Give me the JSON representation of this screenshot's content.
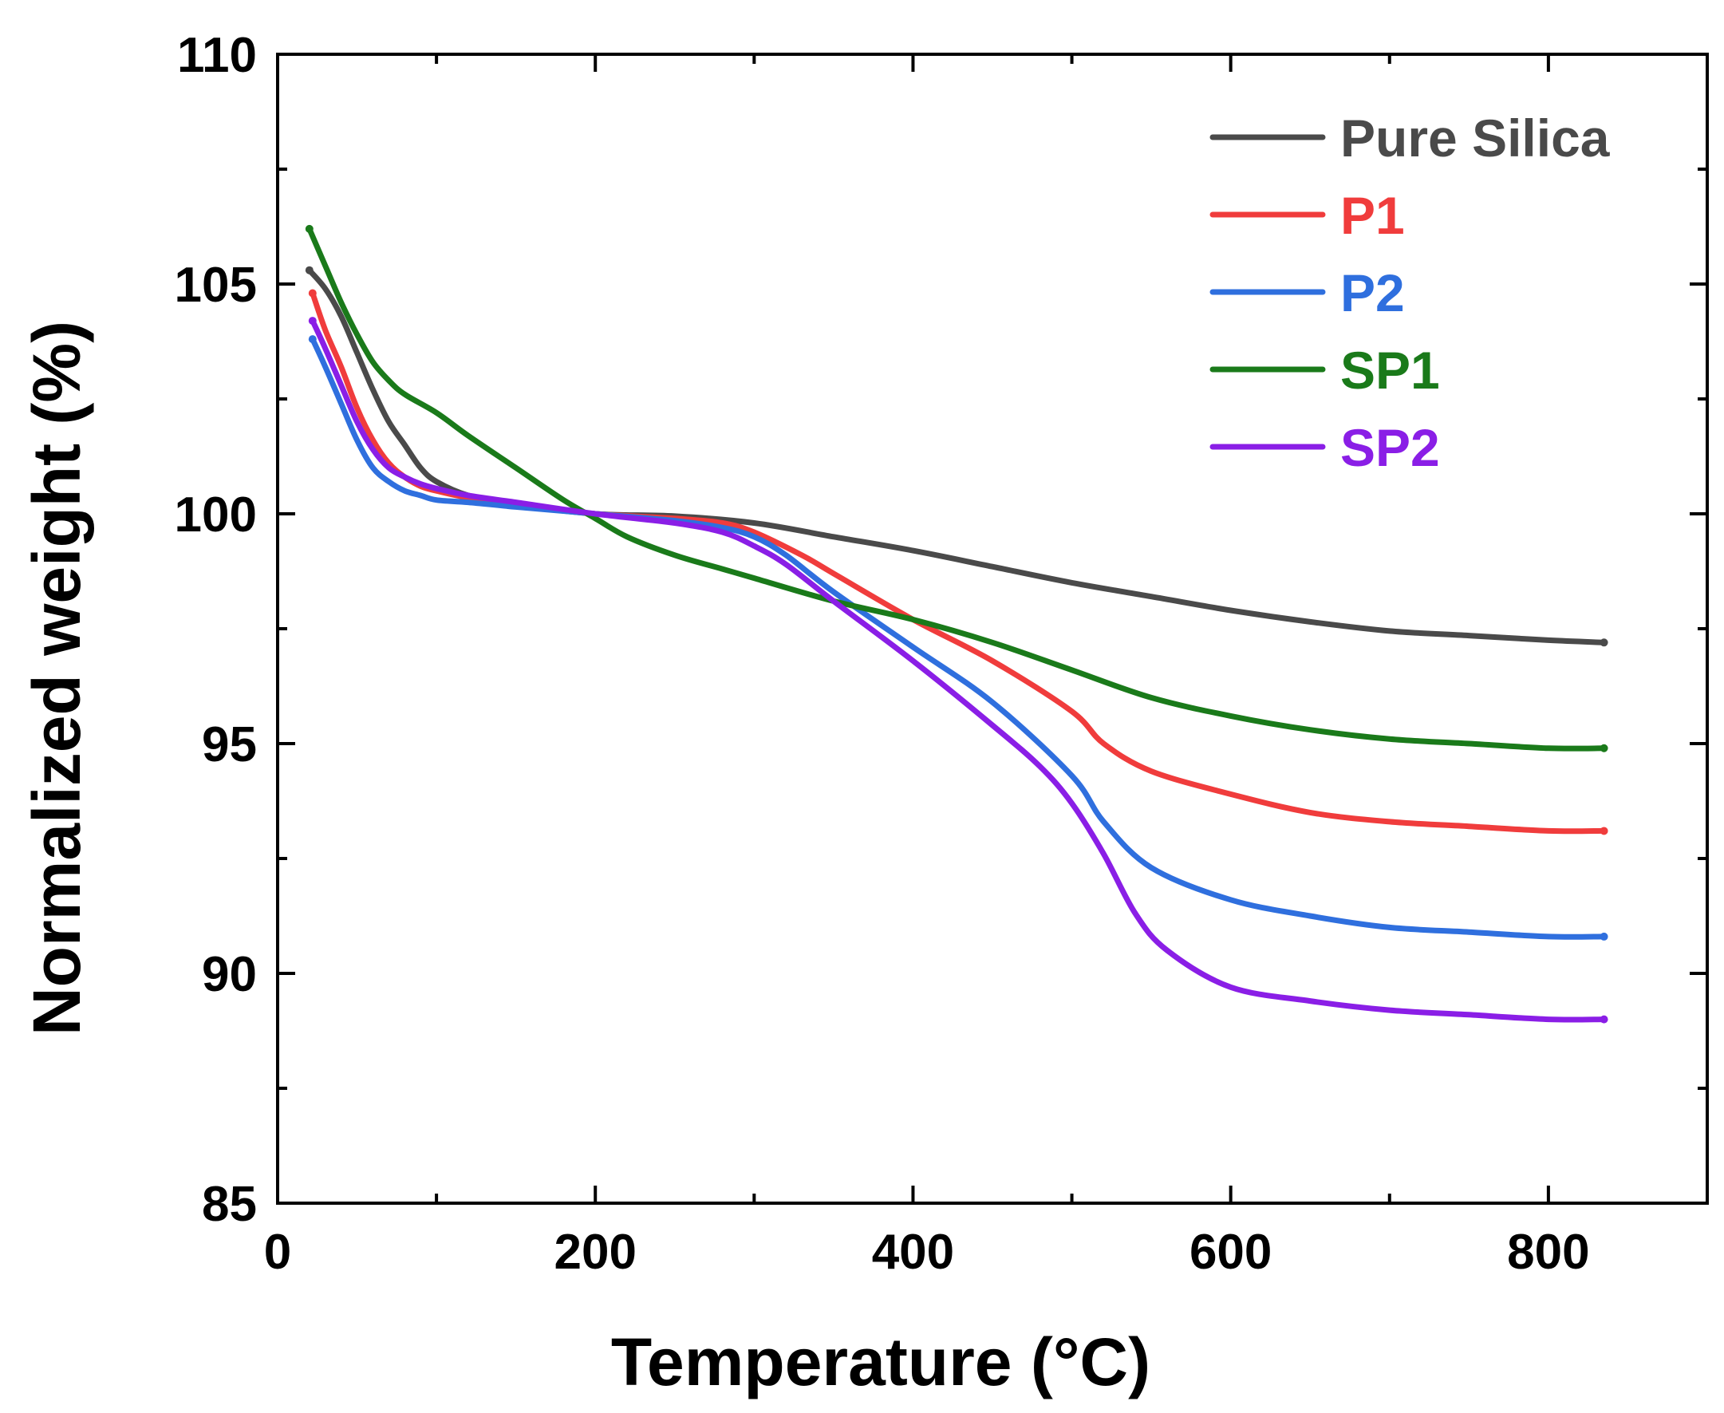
{
  "chart_data": {
    "type": "line",
    "xlabel": "Temperature (°C)",
    "ylabel": "Normalized weight (%)",
    "xlim": [
      0,
      900
    ],
    "ylim": [
      85,
      110
    ],
    "xticks": [
      0,
      200,
      400,
      600,
      800
    ],
    "yticks": [
      85,
      90,
      95,
      100,
      105,
      110
    ],
    "grid": false,
    "legend_position": "top-right",
    "series": [
      {
        "name": "Pure Silica",
        "color": "#4a4a4a",
        "x": [
          20,
          30,
          40,
          50,
          60,
          70,
          80,
          90,
          100,
          120,
          150,
          200,
          250,
          300,
          350,
          400,
          450,
          500,
          550,
          600,
          650,
          700,
          750,
          800,
          835
        ],
        "y": [
          105.3,
          104.9,
          104.3,
          103.5,
          102.7,
          102.0,
          101.5,
          101.0,
          100.7,
          100.4,
          100.2,
          100.0,
          99.95,
          99.8,
          99.5,
          99.2,
          98.85,
          98.5,
          98.2,
          97.9,
          97.65,
          97.45,
          97.35,
          97.25,
          97.2
        ]
      },
      {
        "name": "P1",
        "color": "#f03c3c",
        "x": [
          22,
          30,
          40,
          50,
          60,
          70,
          80,
          90,
          100,
          120,
          150,
          200,
          250,
          280,
          300,
          330,
          350,
          400,
          450,
          500,
          520,
          550,
          600,
          650,
          700,
          750,
          800,
          835
        ],
        "y": [
          104.8,
          104.0,
          103.2,
          102.3,
          101.6,
          101.1,
          100.8,
          100.6,
          100.5,
          100.35,
          100.2,
          100.0,
          99.9,
          99.8,
          99.6,
          99.1,
          98.7,
          97.7,
          96.8,
          95.7,
          95.0,
          94.4,
          93.9,
          93.5,
          93.3,
          93.2,
          93.1,
          93.1
        ]
      },
      {
        "name": "P2",
        "color": "#2f6fde",
        "x": [
          22,
          30,
          40,
          50,
          60,
          70,
          80,
          90,
          100,
          120,
          150,
          200,
          250,
          280,
          300,
          320,
          350,
          400,
          450,
          500,
          520,
          550,
          600,
          650,
          700,
          750,
          800,
          835
        ],
        "y": [
          103.8,
          103.2,
          102.4,
          101.6,
          101.0,
          100.7,
          100.5,
          100.4,
          100.3,
          100.25,
          100.15,
          100.0,
          99.85,
          99.7,
          99.5,
          99.1,
          98.3,
          97.1,
          95.9,
          94.3,
          93.3,
          92.3,
          91.6,
          91.25,
          91.0,
          90.9,
          90.8,
          90.8
        ]
      },
      {
        "name": "SP1",
        "color": "#1a7a1a",
        "x": [
          20,
          30,
          40,
          50,
          60,
          70,
          80,
          100,
          120,
          150,
          180,
          200,
          220,
          250,
          280,
          300,
          350,
          400,
          450,
          500,
          550,
          600,
          650,
          700,
          750,
          800,
          835
        ],
        "y": [
          106.2,
          105.4,
          104.6,
          103.9,
          103.3,
          102.9,
          102.6,
          102.2,
          101.7,
          101.0,
          100.3,
          99.9,
          99.5,
          99.1,
          98.8,
          98.6,
          98.1,
          97.7,
          97.2,
          96.6,
          96.0,
          95.6,
          95.3,
          95.1,
          95.0,
          94.9,
          94.9
        ]
      },
      {
        "name": "SP2",
        "color": "#8a1ee6",
        "x": [
          22,
          30,
          40,
          50,
          60,
          70,
          80,
          90,
          100,
          120,
          150,
          200,
          250,
          280,
          300,
          320,
          350,
          400,
          450,
          480,
          500,
          520,
          540,
          560,
          600,
          650,
          700,
          750,
          800,
          835
        ],
        "y": [
          104.2,
          103.6,
          102.8,
          102.0,
          101.4,
          101.0,
          100.8,
          100.65,
          100.55,
          100.4,
          100.25,
          100.0,
          99.8,
          99.6,
          99.3,
          98.9,
          98.1,
          96.8,
          95.4,
          94.5,
          93.7,
          92.6,
          91.3,
          90.5,
          89.7,
          89.4,
          89.2,
          89.1,
          89.0,
          89.0
        ]
      }
    ]
  }
}
